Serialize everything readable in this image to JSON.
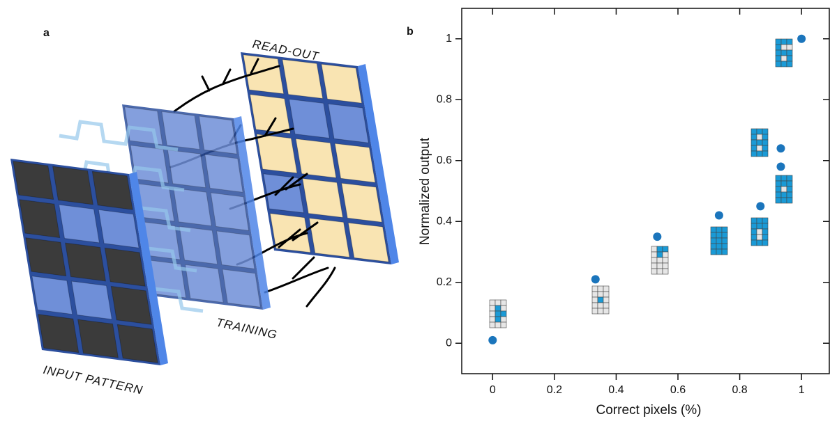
{
  "panel_a": {
    "label": "a",
    "readout_label": "READ-OUT",
    "training_label": "TRAINING",
    "input_label": "INPUT PATTERN"
  },
  "chart_data": {
    "type": "scatter",
    "panel_label": "b",
    "x_label": "Correct pixels (%)",
    "y_label": "Normalized output",
    "series": [
      {
        "color": "#1b75bc",
        "x": [
          0,
          0.333,
          0.533,
          0.733,
          0.867,
          0.933,
          0.933,
          1
        ],
        "values": [
          0.01,
          0.21,
          0.35,
          0.42,
          0.45,
          0.58,
          0.64,
          1.0
        ]
      }
    ],
    "xlim": [
      -0.1,
      1.09
    ],
    "ylim": [
      -0.1,
      1.1
    ],
    "xticks": [
      0,
      0.2,
      0.4,
      0.6,
      0.8,
      1
    ],
    "yticks": [
      0,
      0.2,
      0.4,
      0.6,
      0.8,
      1
    ],
    "grid": false
  }
}
